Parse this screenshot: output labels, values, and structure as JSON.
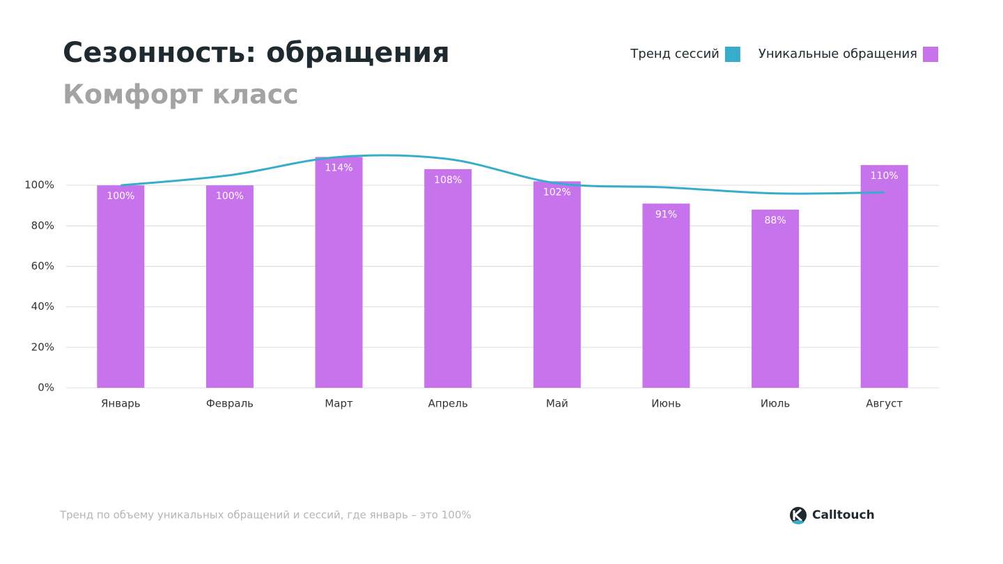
{
  "chart_data": {
    "type": "bar",
    "title": "Сезонность: обращения",
    "subtitle": "Комфорт класс",
    "categories": [
      "Январь",
      "Февраль",
      "Март",
      "Апрель",
      "Май",
      "Июнь",
      "Июль",
      "Август"
    ],
    "series": [
      {
        "name": "Тренд сессий",
        "type": "line",
        "color": "#36aecb",
        "values": [
          100,
          105,
          114,
          113,
          101,
          99,
          96,
          96.5
        ]
      },
      {
        "name": "Уникальные обращения",
        "type": "bar",
        "color": "#c774ec",
        "values": [
          100,
          100,
          114,
          108,
          102,
          91,
          88,
          110
        ],
        "value_labels": [
          "100%",
          "100%",
          "114%",
          "108%",
          "102%",
          "91%",
          "88%",
          "110%"
        ]
      }
    ],
    "ylim": [
      0,
      120
    ],
    "yticks": [
      {
        "value": 0,
        "label": "0%"
      },
      {
        "value": 20,
        "label": "20%"
      },
      {
        "value": 40,
        "label": "40%"
      },
      {
        "value": 60,
        "label": "60%"
      },
      {
        "value": 80,
        "label": "80%"
      },
      {
        "value": 100,
        "label": "100%"
      }
    ],
    "grid": true,
    "legend": "top-right"
  },
  "footer": {
    "note": "Тренд по объему уникальных обращений и сессий, где январь – это 100%",
    "brand": "Calltouch"
  }
}
